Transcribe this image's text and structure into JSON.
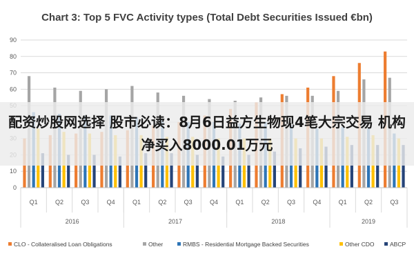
{
  "overlay_text": "配资炒股网选择 股市必读：8月6日益方生物现4笔大宗交易 机构净买入8000.01万元",
  "chart_data": {
    "type": "bar",
    "title": "Chart 3: Top 5 FVC Activity types (Total Debt Securities Issued €bn)",
    "ylim": [
      0,
      90
    ],
    "yticks": [
      0,
      10,
      20,
      30,
      40,
      50,
      60,
      70,
      80,
      90
    ],
    "grid": true,
    "legend_position": "bottom",
    "categories": [
      "Q1",
      "Q2",
      "Q3",
      "Q4",
      "Q1",
      "Q2",
      "Q3",
      "Q4",
      "Q1",
      "Q2",
      "Q3",
      "Q4",
      "Q1",
      "Q2",
      "Q3"
    ],
    "groups": [
      {
        "label": "2016",
        "count": 4
      },
      {
        "label": "2017",
        "count": 4
      },
      {
        "label": "2018",
        "count": 4
      },
      {
        "label": "2019",
        "count": 3
      }
    ],
    "series": [
      {
        "name": "CLO - Collateralised Loan Obligations",
        "color": "#ED7D31",
        "values": [
          30,
          32,
          33,
          34,
          35,
          38,
          40,
          44,
          48,
          52,
          57,
          61,
          68,
          76,
          83
        ]
      },
      {
        "name": "Other",
        "color": "#A5A5A5",
        "values": [
          68,
          61,
          59,
          60,
          62,
          58,
          56,
          54,
          53,
          55,
          56,
          56,
          59,
          66,
          67
        ]
      },
      {
        "name": "RMBS - Residential Mortgage Backed Securities",
        "color": "#2E75B6",
        "values": [
          46,
          45,
          44,
          44,
          43,
          42,
          40,
          40,
          39,
          40,
          38,
          36,
          37,
          36,
          33
        ]
      },
      {
        "name": "Other CDO",
        "color": "#FFC000",
        "values": [
          36,
          34,
          33,
          32,
          32,
          31,
          31,
          30,
          30,
          30,
          30,
          30,
          31,
          32,
          30
        ]
      },
      {
        "name": "ABCP",
        "color": "#264478",
        "values": [
          21,
          20,
          20,
          19,
          21,
          21,
          20,
          19,
          20,
          22,
          24,
          25,
          26,
          26,
          26
        ]
      }
    ]
  }
}
